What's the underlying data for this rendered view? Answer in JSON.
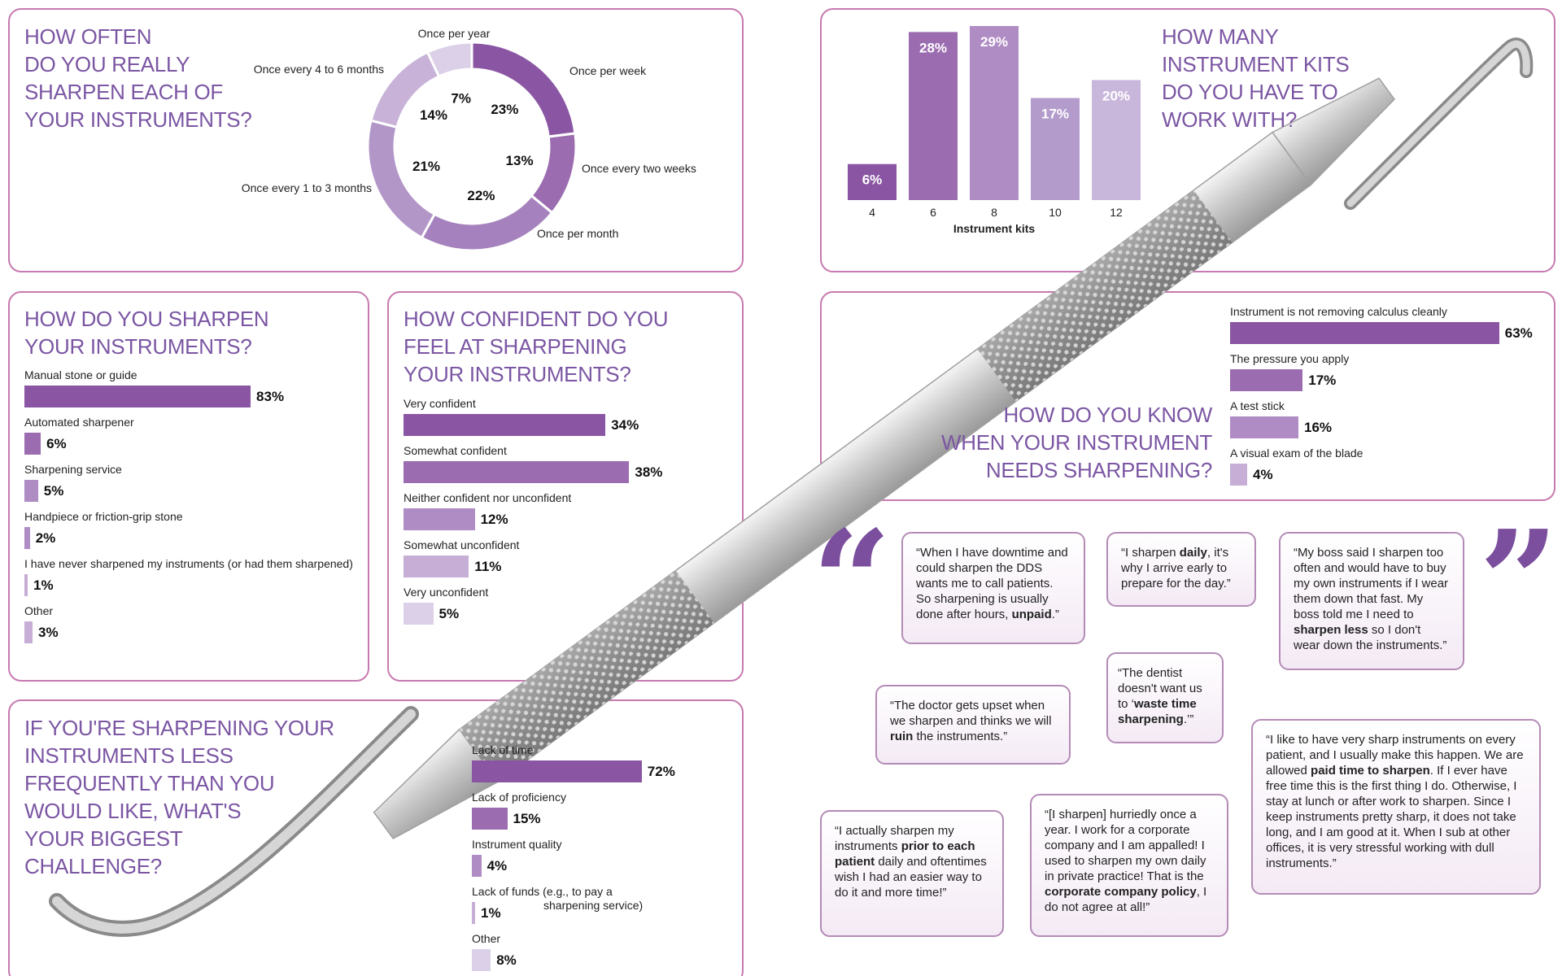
{
  "colors": {
    "border": "#c77ab0",
    "title": "#7b56a3",
    "shades": [
      "#8a56a3",
      "#9b6cb0",
      "#b08cc4",
      "#c6aed6",
      "#dcd0e8"
    ]
  },
  "frequency": {
    "title_lines": [
      "HOW OFTEN",
      "DO YOU REALLY",
      "SHARPEN EACH OF",
      "YOUR INSTRUMENTS?"
    ]
  },
  "kits": {
    "title_lines": [
      "HOW MANY",
      "INSTRUMENT KITS",
      "DO YOU HAVE TO",
      "WORK WITH?"
    ]
  },
  "method": {
    "title_lines": [
      "HOW DO YOU SHARPEN",
      "YOUR INSTRUMENTS?"
    ],
    "items": [
      {
        "label": "Manual stone or guide",
        "value": 83,
        "pct": "83%"
      },
      {
        "label": "Automated sharpener",
        "value": 6,
        "pct": "6%"
      },
      {
        "label": "Sharpening service",
        "value": 5,
        "pct": "5%"
      },
      {
        "label": "Handpiece or friction-grip stone",
        "value": 2,
        "pct": "2%"
      },
      {
        "label": "I have never sharpened my instruments (or had them sharpened)",
        "value": 1,
        "pct": "1%"
      },
      {
        "label": "Other",
        "value": 3,
        "pct": "3%"
      }
    ]
  },
  "confidence": {
    "title_lines": [
      "HOW CONFIDENT DO YOU",
      "FEEL AT SHARPENING",
      "YOUR  INSTRUMENTS?"
    ],
    "items": [
      {
        "label": "Very confident",
        "value": 34,
        "pct": "34%"
      },
      {
        "label": "Somewhat confident",
        "value": 38,
        "pct": "38%"
      },
      {
        "label": "Neither confident nor unconfident",
        "value": 12,
        "pct": "12%"
      },
      {
        "label": "Somewhat unconfident",
        "value": 11,
        "pct": "11%"
      },
      {
        "label": "Very unconfident",
        "value": 5,
        "pct": "5%"
      }
    ]
  },
  "knowing": {
    "title_lines": [
      "HOW DO YOU KNOW",
      "WHEN YOUR INSTRUMENT",
      "NEEDS SHARPENING?"
    ],
    "items": [
      {
        "label": "Instrument is not removing calculus cleanly",
        "value": 63,
        "pct": "63%"
      },
      {
        "label": "The pressure you apply",
        "value": 17,
        "pct": "17%"
      },
      {
        "label": "A test stick",
        "value": 16,
        "pct": "16%"
      },
      {
        "label": "A visual exam of the blade",
        "value": 4,
        "pct": "4%"
      }
    ]
  },
  "challenge": {
    "title_lines": [
      "IF YOU'RE SHARPENING YOUR",
      "INSTRUMENTS LESS",
      "FREQUENTLY THAN YOU",
      "WOULD LIKE, WHAT'S",
      "YOUR BIGGEST",
      "CHALLENGE?"
    ],
    "items": [
      {
        "label": "Lack of time",
        "value": 72,
        "pct": "72%"
      },
      {
        "label": "Lack of proficiency",
        "value": 15,
        "pct": "15%"
      },
      {
        "label": "Instrument quality",
        "value": 4,
        "pct": "4%"
      },
      {
        "label": "Lack of funds (e.g., to pay a",
        "label2": "sharpening service)",
        "value": 1,
        "pct": "1%"
      },
      {
        "label": "Other",
        "value": 8,
        "pct": "8%"
      }
    ]
  },
  "quotes": {
    "q1": {
      "pre": "“When I have downtime and could sharpen the DDS wants me to call patients. So sharpening is usually done after hours, ",
      "bold": "unpaid",
      "post": ".”"
    },
    "q2": {
      "pre": "“I sharpen ",
      "bold": "daily",
      "post": ", it's why I arrive early to prepare for the day.”"
    },
    "q3": {
      "pre": "“My boss said I sharpen too often and would have to buy my own instruments if I wear them down that fast. My boss told me I need to ",
      "bold": "sharpen less",
      "post": " so I don't wear down the instruments.”"
    },
    "q4": {
      "pre": "“The doctor gets upset when we sharpen and thinks we will ",
      "bold": "ruin",
      "post": " the instruments.”"
    },
    "q5": {
      "pre": "“The dentist doesn't want us to ‘",
      "bold": "waste time sharpening",
      "post": ".’”"
    },
    "q6": {
      "pre": "“I like to have very sharp instruments on every patient, and I usually make this happen. We are allowed ",
      "bold": "paid time to sharpen",
      "post": ". If I ever have free time this is the first thing I do. Otherwise, I stay at lunch or after work to sharpen. Since I keep instruments pretty sharp, it does not take long, and I am good at it. When I sub at other offices, it is very stressful working with dull instruments.”"
    },
    "q7": {
      "pre": "“I actually sharpen my instruments ",
      "bold": "prior to each patient",
      "post": " daily and oftentimes wish I had an easier way to do it and more time!”"
    },
    "q8": {
      "pre": "“[I sharpen] hurriedly once a year. I work for a corporate company and I am appalled! I used to sharpen my own daily in private practice! That is the ",
      "bold": "corporate company policy",
      "post": ", I do not agree at all!”"
    }
  },
  "quote_marks": {
    "open": "“",
    "close": "”"
  },
  "chart_data": [
    {
      "type": "pie",
      "title": "HOW OFTEN DO YOU REALLY SHARPEN EACH OF YOUR INSTRUMENTS?",
      "categories": [
        "Once per week",
        "Once every two weeks",
        "Once per month",
        "Once every 1 to 3 months",
        "Once every 4 to 6 months",
        "Once per year"
      ],
      "values": [
        23,
        13,
        22,
        21,
        14,
        7
      ],
      "labels": [
        "23%",
        "13%",
        "22%",
        "21%",
        "14%",
        "7%"
      ]
    },
    {
      "type": "bar",
      "title": "HOW MANY INSTRUMENT KITS DO YOU HAVE TO WORK WITH?",
      "categories": [
        "4",
        "6",
        "8",
        "10",
        "12"
      ],
      "values": [
        6,
        28,
        29,
        17,
        20
      ],
      "labels": [
        "6%",
        "28%",
        "29%",
        "17%",
        "20%"
      ],
      "xlabel": "Instrument kits",
      "ylim": [
        0,
        29
      ]
    }
  ]
}
